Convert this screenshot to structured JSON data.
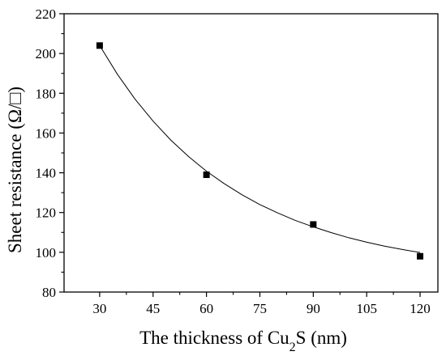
{
  "chart_data": {
    "type": "scatter",
    "title": "",
    "xlabel": "The thickness of Cu2S (nm)",
    "xlabel_parts": {
      "prefix": "The thickness of Cu",
      "subscript": "2",
      "suffix": "S (nm)"
    },
    "ylabel": "Sheet resistance (Ω/□)",
    "xlim": [
      20,
      125
    ],
    "ylim": [
      80,
      220
    ],
    "xticks": [
      30,
      45,
      60,
      75,
      90,
      105,
      120
    ],
    "yticks": [
      80,
      100,
      120,
      140,
      160,
      180,
      200,
      220
    ],
    "grid": false,
    "legend": "none",
    "colors": {
      "marker": "#000000",
      "fit_line": "#000000",
      "axes": "#000000"
    },
    "series": [
      {
        "x": [
          30,
          60,
          90,
          120
        ],
        "y": [
          204,
          139,
          114,
          98
        ],
        "marker": "square"
      }
    ],
    "fit_curve": {
      "x": [
        30,
        35,
        40,
        45,
        50,
        55,
        60,
        65,
        70,
        75,
        80,
        85,
        90,
        95,
        100,
        105,
        110,
        115,
        120
      ],
      "y": [
        204,
        189.5,
        176.9,
        166,
        156.4,
        148.1,
        140.8,
        134.5,
        128.9,
        124,
        119.8,
        116,
        112.8,
        109.9,
        107.3,
        105.1,
        103.1,
        101.4,
        99.9
      ]
    }
  }
}
